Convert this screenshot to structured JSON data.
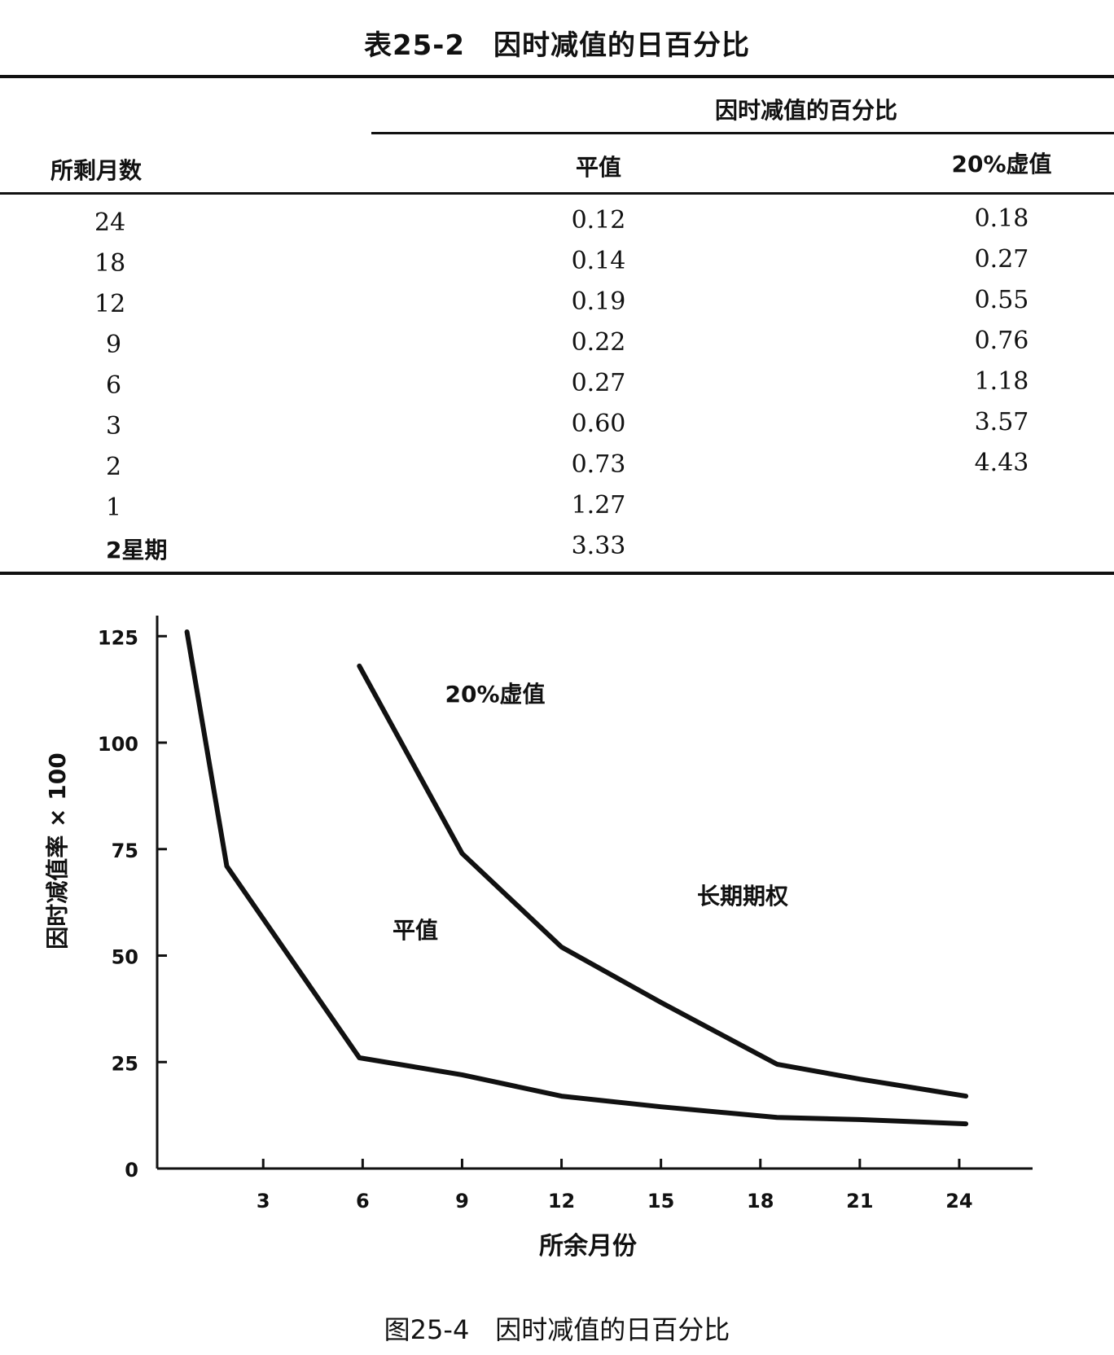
{
  "table": {
    "title": "表25-2　因时减值的日百分比",
    "group_header": "因时减值的百分比",
    "row_header": "所剩月数",
    "col_headers": [
      "平值",
      "20%虚值"
    ],
    "rows": [
      {
        "months": "24",
        "par": "0.12",
        "otm": "0.18"
      },
      {
        "months": "18",
        "par": "0.14",
        "otm": "0.27"
      },
      {
        "months": "12",
        "par": "0.19",
        "otm": "0.55"
      },
      {
        "months": "9",
        "par": "0.22",
        "otm": "0.76"
      },
      {
        "months": "6",
        "par": "0.27",
        "otm": "1.18"
      },
      {
        "months": "3",
        "par": "0.60",
        "otm": "3.57"
      },
      {
        "months": "2",
        "par": "0.73",
        "otm": "4.43"
      },
      {
        "months": "1",
        "par": "1.27",
        "otm": ""
      },
      {
        "months": "2星期",
        "par": "3.33",
        "otm": ""
      }
    ]
  },
  "chart_data": {
    "type": "line",
    "title": "",
    "xlabel": "所余月份",
    "ylabel": "因时减值率 × 100",
    "x_ticks": [
      3,
      6,
      9,
      12,
      15,
      18,
      21,
      24
    ],
    "y_ticks": [
      0,
      25,
      50,
      75,
      100,
      125
    ],
    "xlim": [
      -0.5,
      26
    ],
    "ylim": [
      0,
      128
    ],
    "grid": false,
    "series": [
      {
        "name": "平值",
        "color": "#111111",
        "points": [
          [
            0.7,
            126
          ],
          [
            1.9,
            71
          ],
          [
            5.9,
            26
          ],
          [
            9,
            22
          ],
          [
            12,
            17
          ],
          [
            15,
            14.5
          ],
          [
            18.5,
            12
          ],
          [
            21,
            11.5
          ],
          [
            24.2,
            10.5
          ]
        ]
      },
      {
        "name": "20%虚值",
        "color": "#111111",
        "points": [
          [
            5.9,
            118
          ],
          [
            9,
            74
          ],
          [
            12,
            52
          ],
          [
            15,
            39
          ],
          [
            18.5,
            24.5
          ],
          [
            21,
            21
          ],
          [
            24.2,
            17
          ]
        ]
      }
    ],
    "annotations": [
      "20%虚值",
      "平值",
      "长期期权"
    ]
  },
  "figure": {
    "caption": "图25-4　因时减值的日百分比"
  }
}
